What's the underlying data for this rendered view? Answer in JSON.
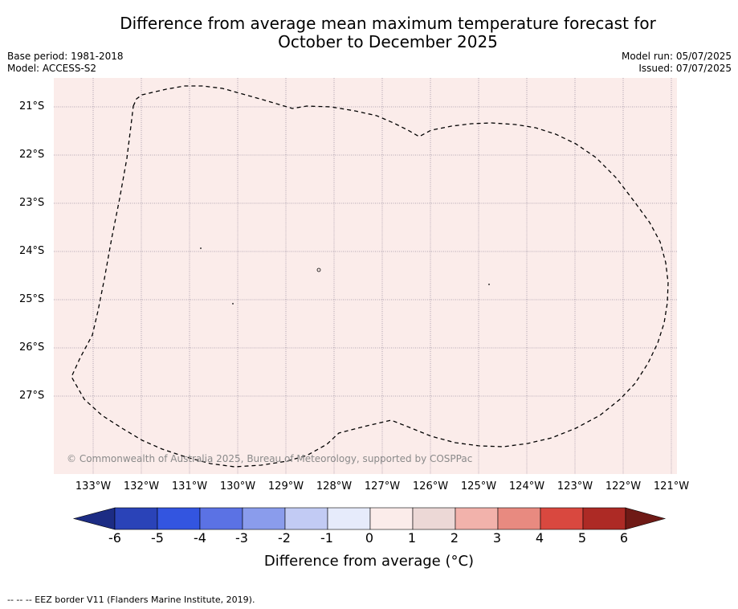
{
  "title": {
    "line1": "Difference from average mean maximum temperature forecast for",
    "line2": "October to December 2025"
  },
  "meta": {
    "base_period": "Base period: 1981-2018",
    "model": "Model: ACCESS-S2",
    "model_run": "Model run: 05/07/2025",
    "issued": "Issued: 07/07/2025"
  },
  "map": {
    "background_color": "#fbecea",
    "lat_labels": [
      "21°S",
      "22°S",
      "23°S",
      "24°S",
      "25°S",
      "26°S",
      "27°S"
    ],
    "lon_labels": [
      "133°W",
      "132°W",
      "131°W",
      "130°W",
      "129°W",
      "128°W",
      "127°W",
      "126°W",
      "125°W",
      "124°W",
      "123°W",
      "122°W",
      "121°W"
    ],
    "copyright": "© Commonwealth of Australia 2025, Bureau of Meteorology, supported by COSPPac"
  },
  "colorbar": {
    "colors": [
      "#1c2c84",
      "#2a43b8",
      "#3355e0",
      "#5b72e4",
      "#8a9cec",
      "#c2cbf4",
      "#e6ebfb",
      "#fbecea",
      "#ecd8d6",
      "#f2b2ab",
      "#e88a80",
      "#d9483f",
      "#ad2a25",
      "#6f1a16"
    ],
    "tick_labels": [
      "-6",
      "-5",
      "-4",
      "-3",
      "-2",
      "-1",
      "0",
      "1",
      "2",
      "3",
      "4",
      "5",
      "6"
    ],
    "title": "Difference from average (°C)"
  },
  "footer": {
    "legend_line": "--  --  -- EEZ border V11 (Flanders Marine Institute, 2019)."
  }
}
